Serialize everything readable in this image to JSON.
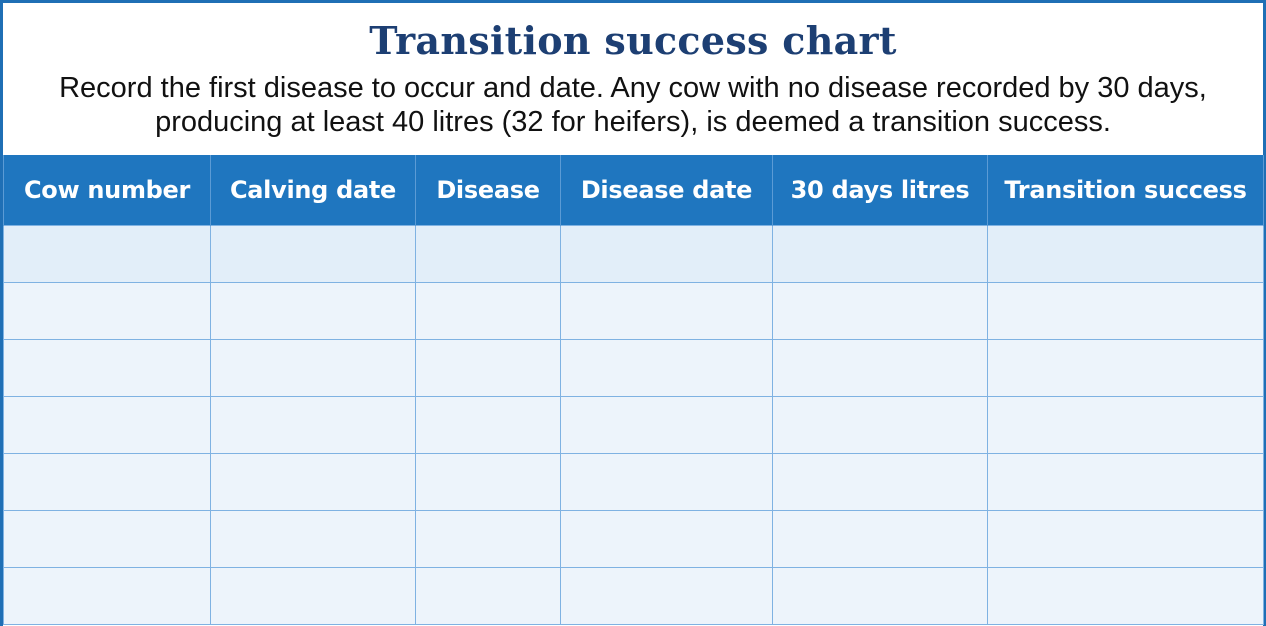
{
  "chart_title": "Transition success chart",
  "instructions": "Record the first disease to occur and date. Any cow with no disease recorded by 30 days, producing at least 40 litres (32 for heifers), is deemed a transition success.",
  "columns": [
    "Cow number",
    "Calving date",
    "Disease",
    "Disease date",
    "30 days litres",
    "Transition success"
  ],
  "rows": [
    [
      "",
      "",
      "",
      "",
      "",
      ""
    ],
    [
      "",
      "",
      "",
      "",
      "",
      ""
    ],
    [
      "",
      "",
      "",
      "",
      "",
      ""
    ],
    [
      "",
      "",
      "",
      "",
      "",
      ""
    ],
    [
      "",
      "",
      "",
      "",
      "",
      ""
    ],
    [
      "",
      "",
      "",
      "",
      "",
      ""
    ],
    [
      "",
      "",
      "",
      "",
      "",
      ""
    ]
  ],
  "colors": {
    "accent": "#1f76bf",
    "title": "#1d3f73",
    "cell": "#edf4fb",
    "grid_line": "#7fb2e2"
  }
}
